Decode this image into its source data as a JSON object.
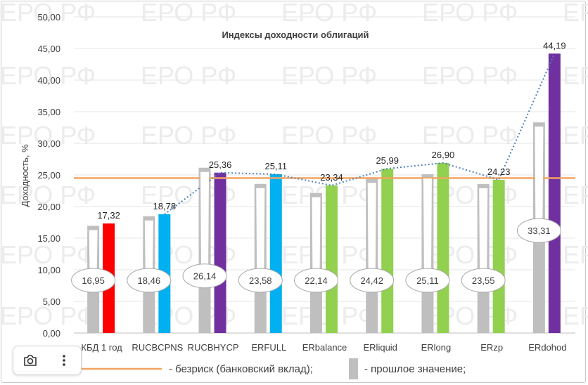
{
  "watermark": "ЕРО РФ",
  "chart_data": {
    "type": "bar",
    "title": "Индексы доходности облигаций",
    "ylabel": "Доходность, %",
    "xlabel": "",
    "ylim": [
      0,
      50
    ],
    "ytick_labels": [
      "0,00",
      "5,00",
      "10,00",
      "15,00",
      "20,00",
      "25,00",
      "30,00",
      "35,00",
      "40,00",
      "45,00",
      "50,00"
    ],
    "categories": [
      "КБД 1 год",
      "RUCBCPNS",
      "RUCBHYCP",
      "ERFULL",
      "ERbalance",
      "ERliquid",
      "ERlong",
      "ERzp",
      "ERdohod"
    ],
    "series": [
      {
        "name": "прошлое значение",
        "values": [
          16.95,
          18.46,
          26.14,
          23.58,
          22.14,
          24.42,
          25.11,
          23.55,
          33.31
        ],
        "labels": [
          "16,95",
          "18,46",
          "26,14",
          "23,58",
          "22,14",
          "24,42",
          "25,11",
          "23,55",
          "33,31"
        ],
        "color": "#bfbfbf"
      },
      {
        "values": [
          17.32,
          18.78,
          25.36,
          25.11,
          23.34,
          25.99,
          26.9,
          24.23,
          44.19
        ],
        "labels": [
          "17,32",
          "18,78",
          "25,36",
          "25,11",
          "23,34",
          "25,99",
          "26,90",
          "24,23",
          "44,19"
        ],
        "colors": [
          "#ff0000",
          "#00b0f0",
          "#7030a0",
          "#00b0f0",
          "#92d050",
          "#92d050",
          "#92d050",
          "#92d050",
          "#7030a0"
        ]
      }
    ],
    "reference_line": {
      "name": "безриск (банковский вклад)",
      "value": 24.5,
      "color": "#f4a460"
    },
    "trend_line": {
      "type": "dotted",
      "color": "#4f81bd"
    },
    "grid": true,
    "legend_position": "bottom"
  },
  "legend": {
    "riskfree_text": "- безриск (банковский вклад);",
    "previous_text": "- прошлое значение;"
  },
  "toolbar": {
    "camera_icon": "camera-icon",
    "more_icon": "more-vertical-icon"
  }
}
